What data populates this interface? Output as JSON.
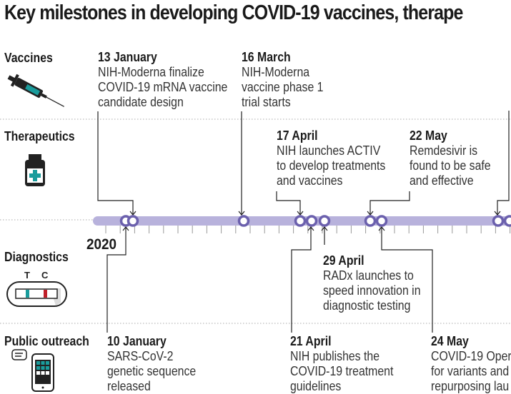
{
  "title": "Key milestones in developing COVID-19 vaccines, therape",
  "rows": [
    {
      "label": "Vaccines",
      "icon": "syringe-icon"
    },
    {
      "label": "Therapeutics",
      "icon": "medicine-bottle-icon"
    },
    {
      "label": "Diagnostics",
      "icon": "test-strip-icon"
    },
    {
      "label": "Public outreach",
      "icon": "smartphone-icon"
    }
  ],
  "test_strip": {
    "t_label": "T",
    "c_label": "C"
  },
  "year": "2020",
  "colors": {
    "timeline": "#b8b2dc",
    "marker": "#6b60ad",
    "teal": "#1a9c9c",
    "red": "#c0202a"
  },
  "events": {
    "jan13": {
      "date": "13 January",
      "lines": [
        "NIH-Moderna finalize",
        "COVID-19 mRNA vaccine",
        "candidate design"
      ]
    },
    "mar16": {
      "date": "16 March",
      "lines": [
        "NIH-Moderna",
        "vaccine phase 1",
        "trial starts"
      ]
    },
    "apr17": {
      "date": "17 April",
      "lines": [
        "NIH launches ACTIV",
        "to develop treatments",
        "and vaccines"
      ]
    },
    "may22": {
      "date": "22 May",
      "lines": [
        "Remdesivir is",
        "found to be safe",
        "and effective"
      ]
    },
    "apr29": {
      "date": "29 April",
      "lines": [
        "RADx launches to",
        "speed innovation in",
        "diagnostic testing"
      ]
    },
    "jan10": {
      "date": "10 January",
      "lines": [
        "SARS-CoV-2",
        "genetic sequence",
        "released"
      ]
    },
    "apr21": {
      "date": "21 April",
      "lines": [
        "NIH publishes the",
        "COVID-19 treatment",
        "guidelines"
      ]
    },
    "may24": {
      "date": "24 May",
      "lines": [
        "COVID-19 Oper",
        "for variants and",
        "repurposing lau"
      ]
    }
  }
}
